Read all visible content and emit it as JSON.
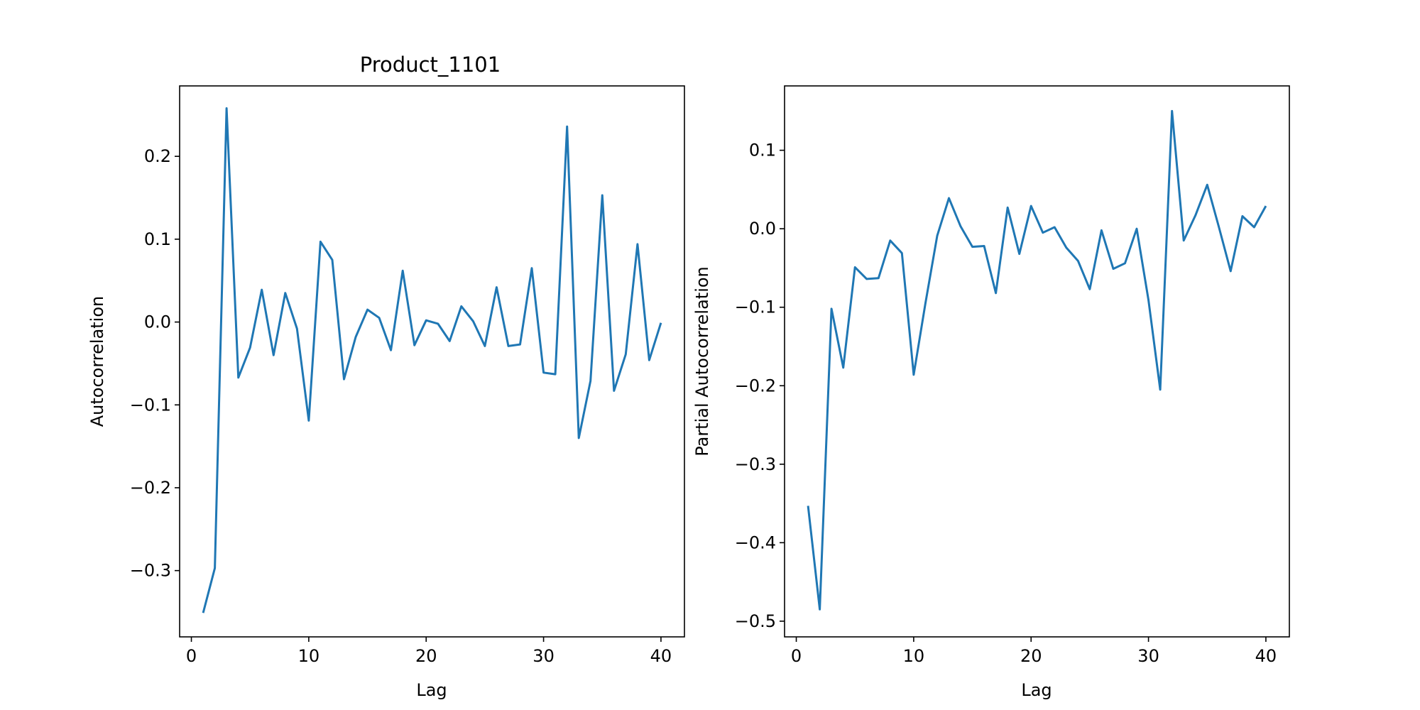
{
  "colors": {
    "line": "#1f77b4",
    "axes": "#000000",
    "background": "#ffffff"
  },
  "chart_data": [
    {
      "type": "line",
      "title": "Product_1101",
      "xlabel": "Lag",
      "ylabel": "Autocorrelation",
      "xlim": [
        -1,
        42
      ],
      "ylim": [
        -0.38,
        0.285
      ],
      "xticks": [
        0,
        10,
        20,
        30,
        40
      ],
      "xtick_labels": [
        "0",
        "10",
        "20",
        "30",
        "40"
      ],
      "yticks": [
        0.2,
        0.1,
        0.0,
        -0.1,
        -0.2,
        -0.3
      ],
      "ytick_labels": [
        "0.2",
        "0.1",
        "0.0",
        "−0.1",
        "−0.2",
        "−0.3"
      ],
      "grid": false,
      "series": [
        {
          "x": [
            1,
            2,
            3,
            4,
            5,
            6,
            7,
            8,
            9,
            10,
            11,
            12,
            13,
            14,
            15,
            16,
            17,
            18,
            19,
            20,
            21,
            22,
            23,
            24,
            25,
            26,
            27,
            28,
            29,
            30,
            31,
            32,
            33,
            34,
            35,
            36,
            37,
            38,
            39,
            40
          ],
          "values": [
            -0.351,
            -0.297,
            0.258,
            -0.067,
            -0.031,
            0.039,
            -0.04,
            0.035,
            -0.008,
            -0.119,
            0.097,
            0.075,
            -0.069,
            -0.018,
            0.015,
            0.005,
            -0.034,
            0.062,
            -0.028,
            0.002,
            -0.002,
            -0.023,
            0.019,
            0.001,
            -0.029,
            0.042,
            -0.029,
            -0.027,
            0.065,
            -0.061,
            -0.063,
            0.236,
            -0.14,
            -0.071,
            0.153,
            -0.083,
            -0.039,
            0.094,
            -0.046,
            -0.001
          ]
        }
      ]
    },
    {
      "type": "line",
      "title": "",
      "xlabel": "Lag",
      "ylabel": "Partial Autocorrelation",
      "xlim": [
        -1,
        42
      ],
      "ylim": [
        -0.52,
        0.182
      ],
      "xticks": [
        0,
        10,
        20,
        30,
        40
      ],
      "xtick_labels": [
        "0",
        "10",
        "20",
        "30",
        "40"
      ],
      "yticks": [
        0.1,
        0.0,
        -0.1,
        -0.2,
        -0.3,
        -0.4,
        -0.5
      ],
      "ytick_labels": [
        "0.1",
        "0.0",
        "−0.1",
        "−0.2",
        "−0.3",
        "−0.4",
        "−0.5"
      ],
      "grid": false,
      "series": [
        {
          "x": [
            1,
            2,
            3,
            4,
            5,
            6,
            7,
            8,
            9,
            10,
            11,
            12,
            13,
            14,
            15,
            16,
            17,
            18,
            19,
            20,
            21,
            22,
            23,
            24,
            25,
            26,
            27,
            28,
            29,
            30,
            31,
            32,
            33,
            34,
            35,
            36,
            37,
            38,
            39,
            40
          ],
          "values": [
            -0.353,
            -0.485,
            -0.102,
            -0.177,
            -0.049,
            -0.064,
            -0.063,
            -0.015,
            -0.031,
            -0.186,
            -0.095,
            -0.009,
            0.039,
            0.003,
            -0.023,
            -0.022,
            -0.082,
            0.027,
            -0.032,
            0.029,
            -0.005,
            0.002,
            -0.024,
            -0.041,
            -0.077,
            -0.002,
            -0.051,
            -0.044,
            0.0,
            -0.091,
            -0.205,
            0.15,
            -0.015,
            0.017,
            0.056,
            0.002,
            -0.054,
            0.016,
            0.002,
            0.029
          ]
        }
      ]
    }
  ]
}
